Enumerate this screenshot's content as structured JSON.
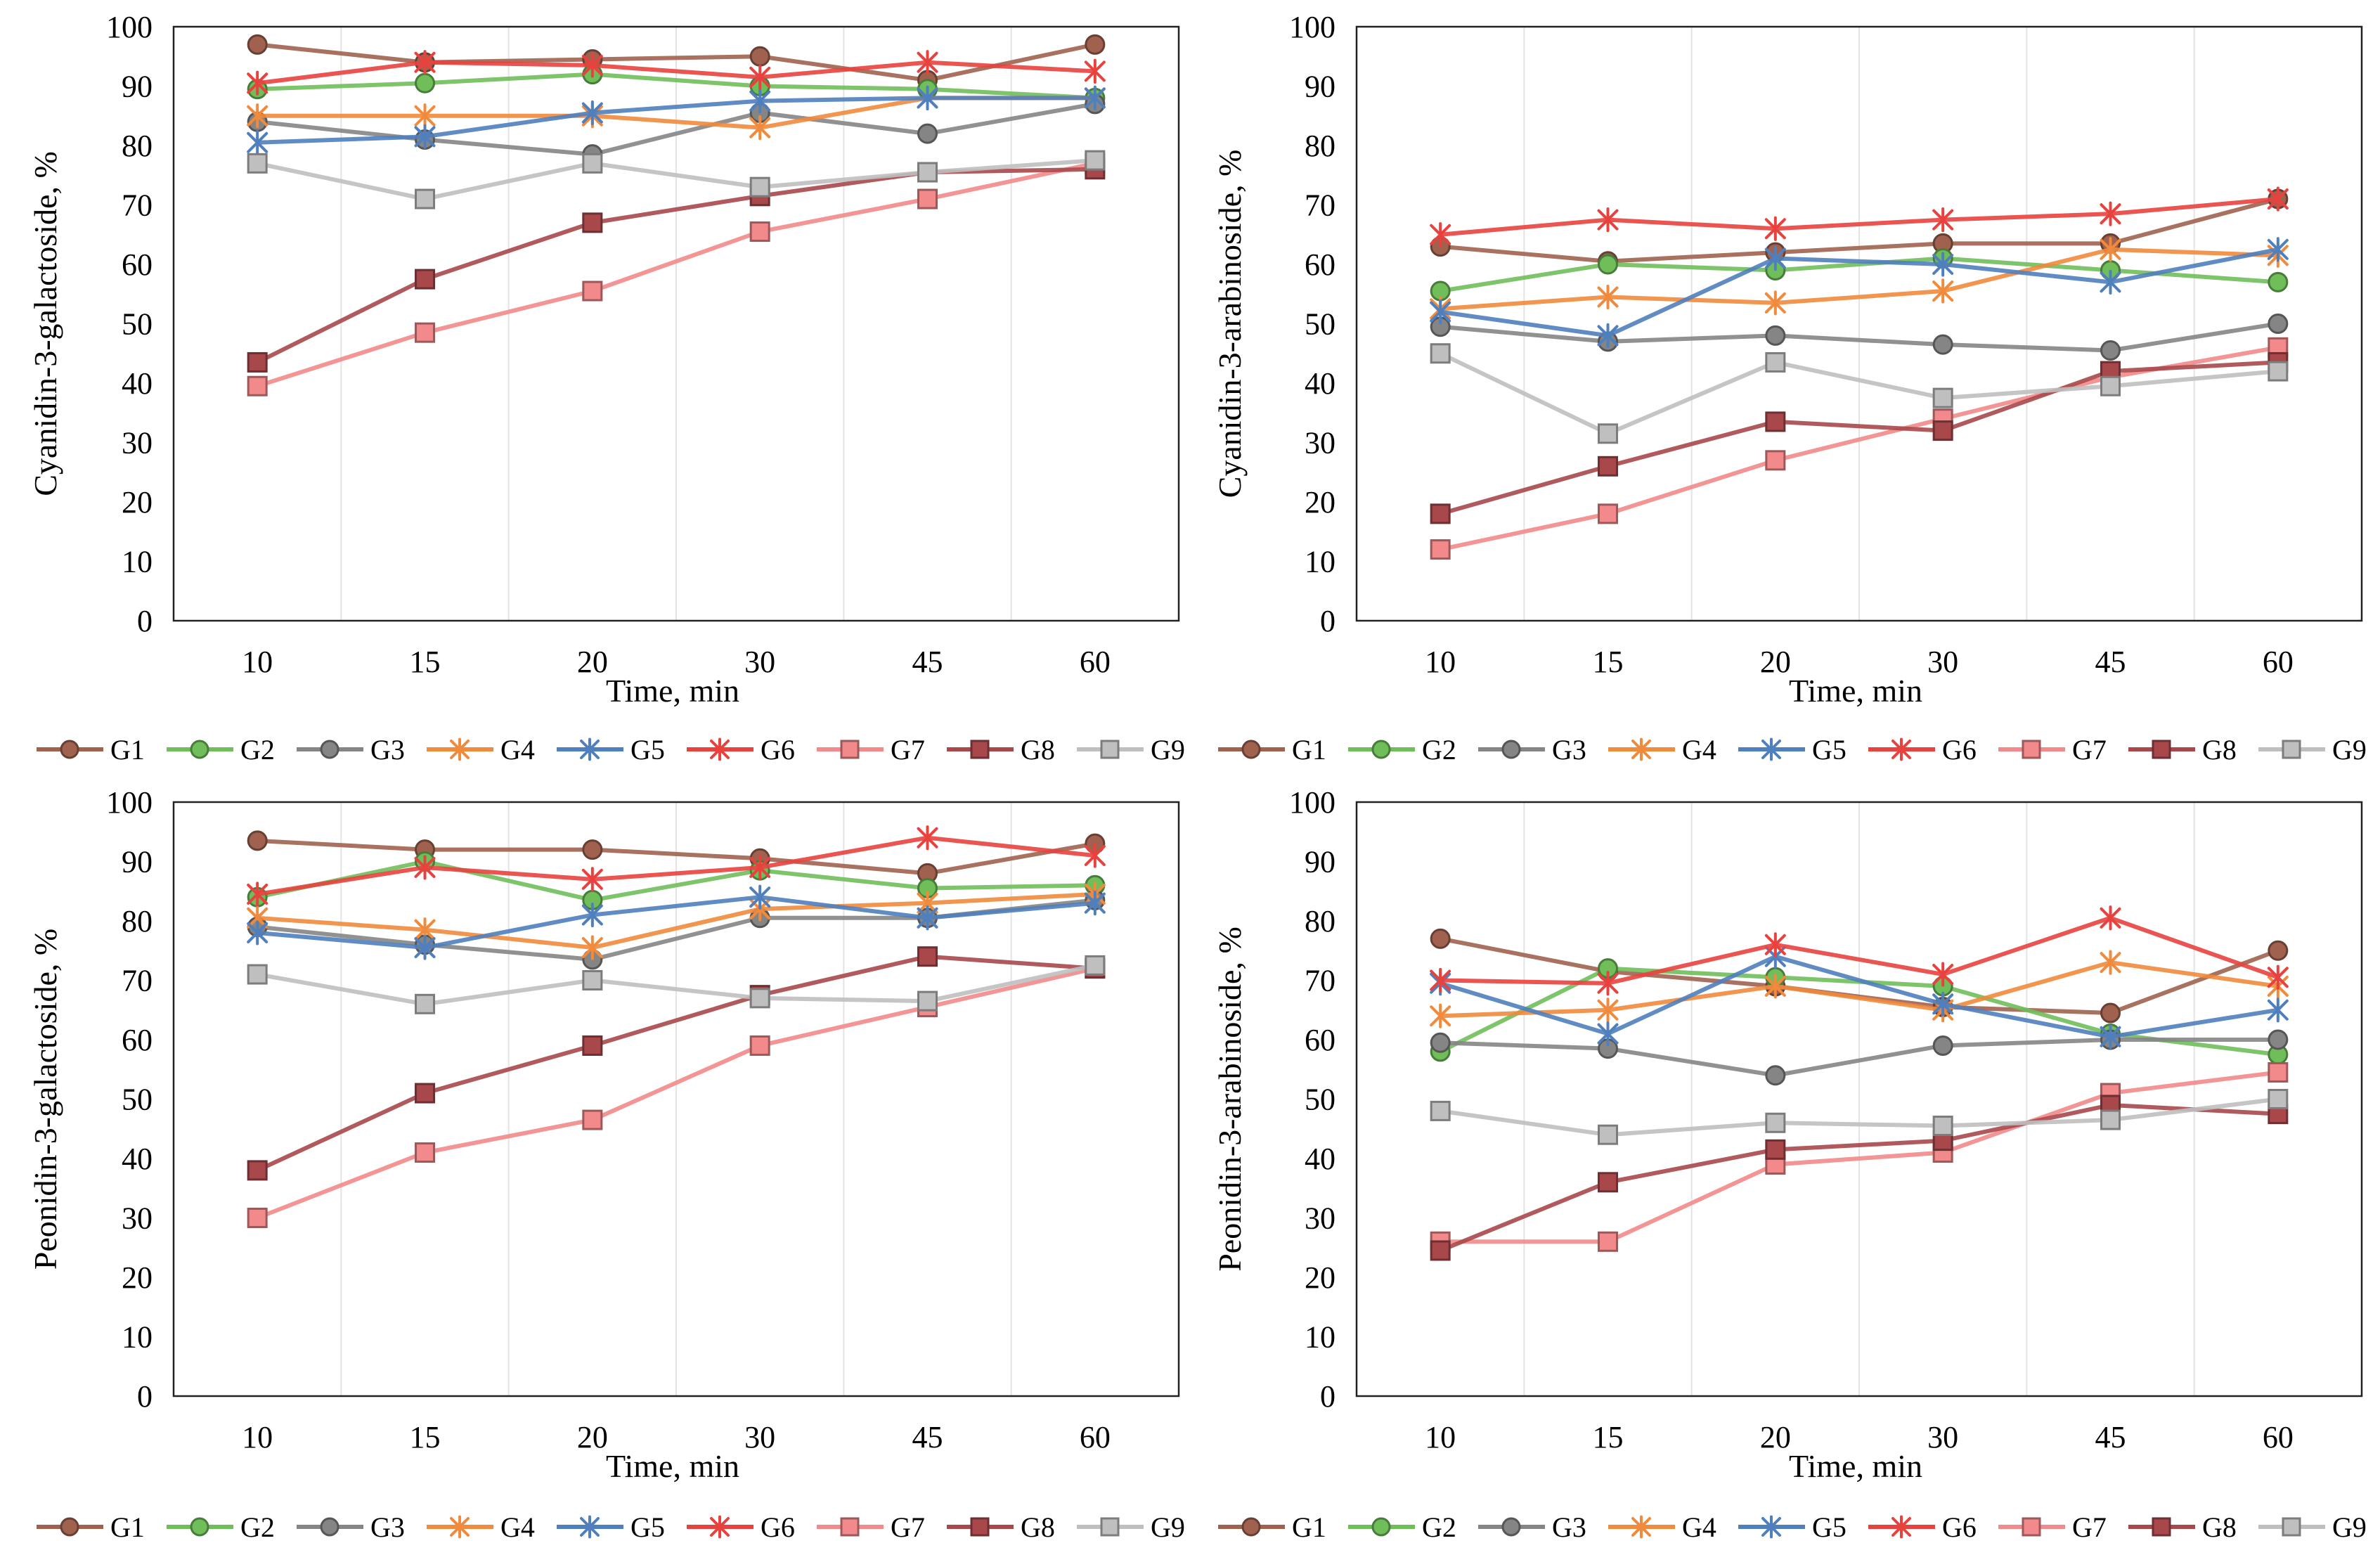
{
  "series_styles": [
    {
      "name": "G1",
      "color": "#a0624f",
      "marker": "circle"
    },
    {
      "name": "G2",
      "color": "#6fbe5a",
      "marker": "circle"
    },
    {
      "name": "G3",
      "color": "#858585",
      "marker": "circle"
    },
    {
      "name": "G4",
      "color": "#f08a3c",
      "marker": "star"
    },
    {
      "name": "G5",
      "color": "#4f7fbd",
      "marker": "star"
    },
    {
      "name": "G6",
      "color": "#e8423f",
      "marker": "star"
    },
    {
      "name": "G7",
      "color": "#f2898a",
      "marker": "square"
    },
    {
      "name": "G8",
      "color": "#a8484b",
      "marker": "square"
    },
    {
      "name": "G9",
      "color": "#bfbfbf",
      "marker": "square"
    }
  ],
  "chart_data": [
    {
      "type": "line",
      "xlabel": "Time, min",
      "ylabel": "Cyanidin-3-galactoside, %",
      "categories": [
        "10",
        "15",
        "20",
        "30",
        "45",
        "60"
      ],
      "ylim": [
        0,
        100
      ],
      "yticks": [
        0,
        10,
        20,
        30,
        40,
        50,
        60,
        70,
        80,
        90,
        100
      ],
      "legend": "bottom",
      "series": [
        {
          "name": "G1",
          "values": [
            97,
            94,
            94.5,
            95,
            91,
            97
          ]
        },
        {
          "name": "G2",
          "values": [
            89.5,
            90.5,
            92,
            90,
            89.5,
            88
          ]
        },
        {
          "name": "G3",
          "values": [
            84,
            81,
            78.5,
            85.5,
            82,
            87
          ]
        },
        {
          "name": "G4",
          "values": [
            85,
            85,
            85,
            83,
            88,
            88
          ]
        },
        {
          "name": "G5",
          "values": [
            80.5,
            81.5,
            85.5,
            87.5,
            88,
            88
          ]
        },
        {
          "name": "G6",
          "values": [
            90.5,
            94,
            93.5,
            91.5,
            94,
            92.5
          ]
        },
        {
          "name": "G7",
          "values": [
            39.5,
            48.5,
            55.5,
            65.5,
            71,
            77
          ]
        },
        {
          "name": "G8",
          "values": [
            43.5,
            57.5,
            67,
            71.5,
            75.5,
            76
          ]
        },
        {
          "name": "G9",
          "values": [
            77,
            71,
            77,
            73,
            75.5,
            77.5
          ]
        }
      ]
    },
    {
      "type": "line",
      "xlabel": "Time, min",
      "ylabel": "Cyanidin-3-arabinoside, %",
      "categories": [
        "10",
        "15",
        "20",
        "30",
        "45",
        "60"
      ],
      "ylim": [
        0,
        100
      ],
      "yticks": [
        0,
        10,
        20,
        30,
        40,
        50,
        60,
        70,
        80,
        90,
        100
      ],
      "legend": "bottom",
      "series": [
        {
          "name": "G1",
          "values": [
            63,
            60.5,
            62,
            63.5,
            63.5,
            71
          ]
        },
        {
          "name": "G2",
          "values": [
            55.5,
            60,
            59,
            61,
            59,
            57
          ]
        },
        {
          "name": "G3",
          "values": [
            49.5,
            47,
            48,
            46.5,
            45.5,
            50
          ]
        },
        {
          "name": "G4",
          "values": [
            52.5,
            54.5,
            53.5,
            55.5,
            62.5,
            61.5
          ]
        },
        {
          "name": "G5",
          "values": [
            52,
            48,
            61,
            60,
            57,
            62.5
          ]
        },
        {
          "name": "G6",
          "values": [
            65,
            67.5,
            66,
            67.5,
            68.5,
            71
          ]
        },
        {
          "name": "G7",
          "values": [
            12,
            18,
            27,
            34,
            41,
            46
          ]
        },
        {
          "name": "G8",
          "values": [
            18,
            26,
            33.5,
            32,
            42,
            43.5
          ]
        },
        {
          "name": "G9",
          "values": [
            45,
            31.5,
            43.5,
            37.5,
            39.5,
            42
          ]
        }
      ]
    },
    {
      "type": "line",
      "xlabel": "Time, min",
      "ylabel": "Peonidin-3-galactoside, %",
      "categories": [
        "10",
        "15",
        "20",
        "30",
        "45",
        "60"
      ],
      "ylim": [
        0,
        100
      ],
      "yticks": [
        0,
        10,
        20,
        30,
        40,
        50,
        60,
        70,
        80,
        90,
        100
      ],
      "legend": "bottom",
      "series": [
        {
          "name": "G1",
          "values": [
            93.5,
            92,
            92,
            90.5,
            88,
            93
          ]
        },
        {
          "name": "G2",
          "values": [
            84,
            90,
            83.5,
            88.5,
            85.5,
            86
          ]
        },
        {
          "name": "G3",
          "values": [
            79,
            76,
            73.5,
            80.5,
            80.5,
            83.5
          ]
        },
        {
          "name": "G4",
          "values": [
            80.5,
            78.5,
            75.5,
            82,
            83,
            84.5
          ]
        },
        {
          "name": "G5",
          "values": [
            78,
            75.5,
            81,
            84,
            80.5,
            83
          ]
        },
        {
          "name": "G6",
          "values": [
            84.5,
            89,
            87,
            89,
            94,
            91
          ]
        },
        {
          "name": "G7",
          "values": [
            30,
            41,
            46.5,
            59,
            65.5,
            72
          ]
        },
        {
          "name": "G8",
          "values": [
            38,
            51,
            59,
            67.5,
            74,
            72
          ]
        },
        {
          "name": "G9",
          "values": [
            71,
            66,
            70,
            67,
            66.5,
            72.5
          ]
        }
      ]
    },
    {
      "type": "line",
      "xlabel": "Time, min",
      "ylabel": "Peonidin-3-arabinoside, %",
      "categories": [
        "10",
        "15",
        "20",
        "30",
        "45",
        "60"
      ],
      "ylim": [
        0,
        100
      ],
      "yticks": [
        0,
        10,
        20,
        30,
        40,
        50,
        60,
        70,
        80,
        90,
        100
      ],
      "legend": "bottom",
      "series": [
        {
          "name": "G1",
          "values": [
            77,
            71.5,
            69,
            65.5,
            64.5,
            75
          ]
        },
        {
          "name": "G2",
          "values": [
            58,
            72,
            70.5,
            69,
            61,
            57.5
          ]
        },
        {
          "name": "G3",
          "values": [
            59.5,
            58.5,
            54,
            59,
            60,
            60
          ]
        },
        {
          "name": "G4",
          "values": [
            64,
            65,
            69,
            65,
            73,
            69
          ]
        },
        {
          "name": "G5",
          "values": [
            69.5,
            61,
            74,
            66,
            60.5,
            65
          ]
        },
        {
          "name": "G6",
          "values": [
            70,
            69.5,
            76,
            71,
            80.5,
            70.5
          ]
        },
        {
          "name": "G7",
          "values": [
            26,
            26,
            39,
            41,
            51,
            54.5
          ]
        },
        {
          "name": "G8",
          "values": [
            24.5,
            36,
            41.5,
            43,
            49,
            47.5
          ]
        },
        {
          "name": "G9",
          "values": [
            48,
            44,
            46,
            45.5,
            46.5,
            50
          ]
        }
      ]
    }
  ]
}
